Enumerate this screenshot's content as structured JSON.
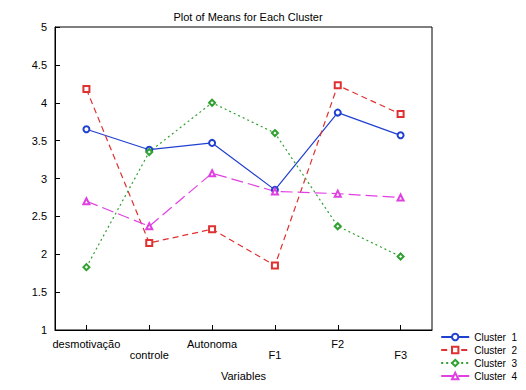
{
  "chart_data": {
    "type": "line",
    "title": "Plot of Means for Each Cluster",
    "x_label": "Variables",
    "categories": [
      "desmotivação",
      "controle",
      "Autonoma",
      "F1",
      "F2",
      "F3"
    ],
    "series": [
      {
        "name": "Cluster  1",
        "color": "#2040d0",
        "marker": "circle",
        "line_style": "solid",
        "values": [
          3.65,
          3.38,
          3.47,
          2.85,
          3.87,
          3.57
        ]
      },
      {
        "name": "Cluster  2",
        "color": "#e03030",
        "marker": "square",
        "line_style": "dashed",
        "values": [
          4.18,
          2.15,
          2.33,
          1.85,
          4.23,
          3.85
        ]
      },
      {
        "name": "Cluster  3",
        "color": "#30a030",
        "marker": "diamond",
        "line_style": "dotted",
        "values": [
          1.83,
          3.35,
          4.0,
          3.6,
          2.37,
          1.97
        ]
      },
      {
        "name": "Cluster  4",
        "color": "#e040e0",
        "marker": "triangle",
        "line_style": "longdash",
        "values": [
          2.7,
          2.37,
          3.07,
          2.83,
          2.8,
          2.75
        ]
      }
    ],
    "ylim": [
      1,
      5
    ],
    "yticks": [
      1,
      1.5,
      2,
      2.5,
      3,
      3.5,
      4,
      4.5,
      5
    ],
    "grid": false,
    "legend": "lower right"
  }
}
